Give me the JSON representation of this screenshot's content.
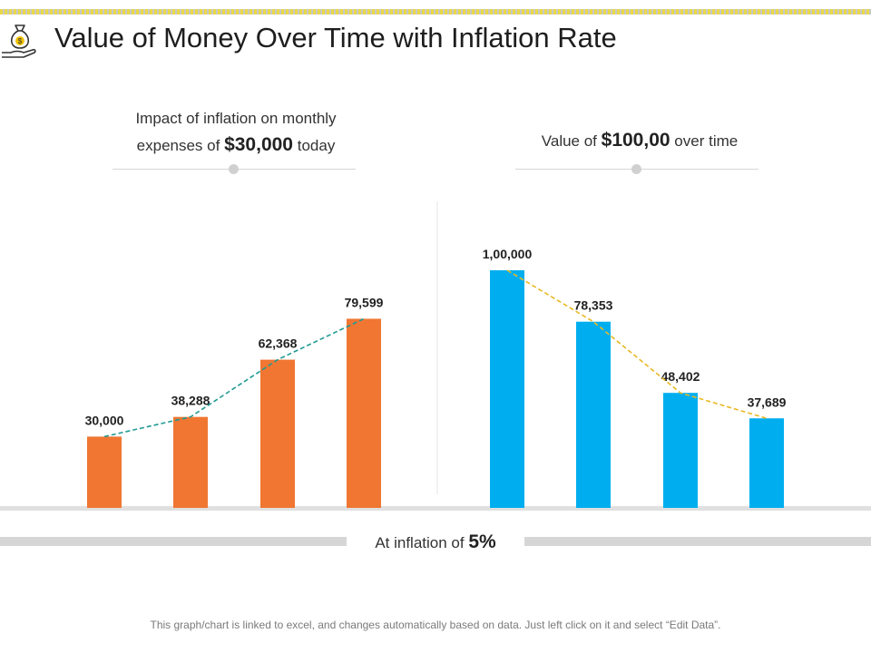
{
  "page": {
    "title": "Value of Money Over Time with Inflation Rate"
  },
  "colors": {
    "orange": "#F07632",
    "blue": "#00AEEF",
    "teal_line": "#1F9A94",
    "yellow_line": "#E9B824",
    "stripe": "#e8d84a"
  },
  "icons": {
    "logo": "money-bag-hand-icon"
  },
  "left_header": {
    "line1": "Impact of inflation on monthly",
    "prefix": "expenses of",
    "amount": "$30,000",
    "suffix": "today"
  },
  "right_header": {
    "prefix": "Value of",
    "amount": "$100,00",
    "suffix": "over time"
  },
  "bottom": {
    "prefix": "At inflation of",
    "rate": "5%"
  },
  "footnote": "This graph/chart is linked to excel, and changes automatically based on data. Just left click on it and select “Edit Data”.",
  "chart_data": [
    {
      "type": "bar",
      "series": [
        {
          "values": [
            30000,
            38288,
            62368,
            79599
          ]
        }
      ],
      "labels": [
        "30,000",
        "38,288",
        "62,368",
        "79,599"
      ],
      "trend_line": "dashed",
      "ylim": [
        0,
        100000
      ]
    },
    {
      "type": "bar",
      "series": [
        {
          "values": [
            100000,
            78353,
            48402,
            37689
          ]
        }
      ],
      "labels": [
        "1,00,000",
        "78,353",
        "48,402",
        "37,689"
      ],
      "trend_line": "dashed",
      "ylim": [
        0,
        100000
      ]
    }
  ]
}
